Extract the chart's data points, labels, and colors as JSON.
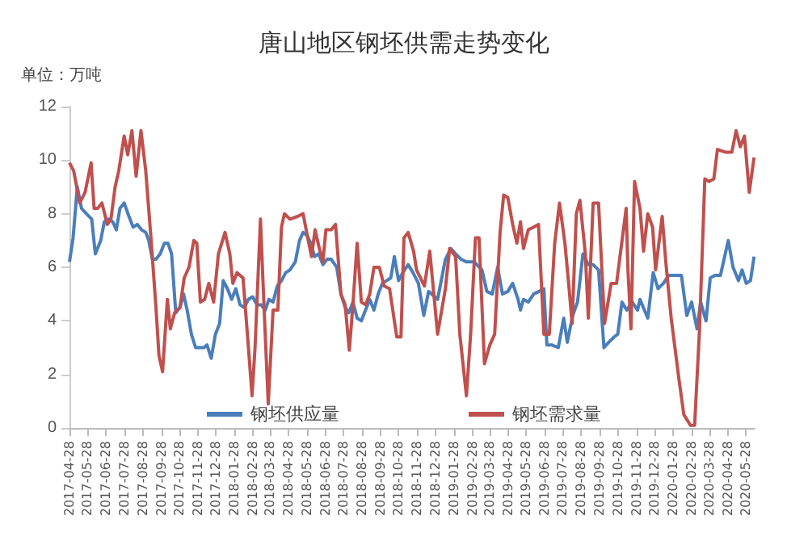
{
  "chart_data": {
    "type": "line",
    "title": "唐山地区钢坯供需走势变化",
    "ylabel": "单位：万吨",
    "xlim": [
      "2017-04-28",
      "2020-06-12"
    ],
    "xticks": [
      "2017-04-28",
      "2017-05-28",
      "2017-06-28",
      "2017-07-28",
      "2017-08-28",
      "2017-09-28",
      "2017-10-28",
      "2017-11-28",
      "2017-12-28",
      "2018-01-28",
      "2018-02-28",
      "2018-03-28",
      "2018-04-28",
      "2018-05-28",
      "2018-06-28",
      "2018-07-28",
      "2018-08-28",
      "2018-09-28",
      "2018-10-28",
      "2018-11-28",
      "2018-12-28",
      "2019-01-28",
      "2019-02-28",
      "2019-03-28",
      "2019-04-28",
      "2019-05-28",
      "2019-06-28",
      "2019-07-28",
      "2019-08-28",
      "2019-09-28",
      "2019-10-28",
      "2019-11-28",
      "2019-12-28",
      "2020-01-28",
      "2020-02-28",
      "2020-03-28",
      "2020-04-28",
      "2020-05-28"
    ],
    "ylim": [
      0,
      12
    ],
    "yticks": [
      0,
      2,
      4,
      6,
      8,
      10,
      12
    ],
    "grid": false,
    "legend": "bottom",
    "marker": "none",
    "line_style": "solid",
    "series": [
      {
        "name": "钢坯供应量",
        "color": "#4a7ebb",
        "x": [
          "2017-04-28",
          "2017-05-04",
          "2017-05-11",
          "2017-05-18",
          "2017-05-26",
          "2017-06-04",
          "2017-06-10",
          "2017-06-19",
          "2017-06-25",
          "2017-07-02",
          "2017-07-09",
          "2017-07-15",
          "2017-07-21",
          "2017-07-28",
          "2017-08-05",
          "2017-08-12",
          "2017-08-19",
          "2017-08-26",
          "2017-09-02",
          "2017-09-07",
          "2017-09-13",
          "2017-09-19",
          "2017-09-26",
          "2017-10-03",
          "2017-10-09",
          "2017-10-15",
          "2017-10-22",
          "2017-10-29",
          "2017-11-04",
          "2017-11-10",
          "2017-11-17",
          "2017-11-24",
          "2017-12-01",
          "2017-12-08",
          "2017-12-13",
          "2017-12-20",
          "2017-12-27",
          "2018-01-03",
          "2018-01-09",
          "2018-01-16",
          "2018-01-23",
          "2018-01-30",
          "2018-02-06",
          "2018-02-13",
          "2018-02-20",
          "2018-02-27",
          "2018-03-06",
          "2018-03-13",
          "2018-03-20",
          "2018-03-26",
          "2018-04-02",
          "2018-04-09",
          "2018-04-16",
          "2018-04-23",
          "2018-04-30",
          "2018-05-09",
          "2018-05-16",
          "2018-05-22",
          "2018-05-28",
          "2018-06-04",
          "2018-06-10",
          "2018-06-17",
          "2018-06-24",
          "2018-07-01",
          "2018-07-08",
          "2018-07-17",
          "2018-07-24",
          "2018-07-31",
          "2018-08-06",
          "2018-08-13",
          "2018-08-20",
          "2018-08-27",
          "2018-09-03",
          "2018-09-10",
          "2018-09-17",
          "2018-09-24",
          "2018-10-01",
          "2018-10-08",
          "2018-10-15",
          "2018-10-21",
          "2018-10-28",
          "2018-11-04",
          "2018-11-13",
          "2018-11-21",
          "2018-11-30",
          "2018-12-09",
          "2018-12-17",
          "2019-01-01",
          "2019-01-14",
          "2019-01-23",
          "2019-01-31",
          "2019-02-09",
          "2019-02-18",
          "2019-03-03",
          "2019-03-16",
          "2019-03-24",
          "2019-04-02",
          "2019-04-11",
          "2019-04-19",
          "2019-04-28",
          "2019-05-06",
          "2019-05-15",
          "2019-05-19",
          "2019-05-24",
          "2019-06-01",
          "2019-06-10",
          "2019-06-19",
          "2019-06-27",
          "2019-07-02",
          "2019-07-10",
          "2019-07-21",
          "2019-07-30",
          "2019-08-05",
          "2019-08-14",
          "2019-08-22",
          "2019-08-31",
          "2019-09-09",
          "2019-09-17",
          "2019-09-26",
          "2019-10-05",
          "2019-10-13",
          "2019-10-22",
          "2019-10-28",
          "2019-11-04",
          "2019-11-12",
          "2019-11-21",
          "2019-11-30",
          "2019-12-04",
          "2019-12-17",
          "2019-12-26",
          "2020-01-03",
          "2020-01-12",
          "2020-01-21",
          "2020-02-02",
          "2020-02-11",
          "2020-02-20",
          "2020-02-28",
          "2020-03-08",
          "2020-03-14",
          "2020-03-23",
          "2020-03-30",
          "2020-04-07",
          "2020-04-16",
          "2020-04-29",
          "2020-05-07",
          "2020-05-16",
          "2020-05-22",
          "2020-05-29",
          "2020-06-05",
          "2020-06-11"
        ],
        "values": [
          6.2,
          7.1,
          9.0,
          8.2,
          8.0,
          7.8,
          6.5,
          7.0,
          7.7,
          7.8,
          7.7,
          7.4,
          8.2,
          8.4,
          7.9,
          7.5,
          7.6,
          7.4,
          7.3,
          7.0,
          6.3,
          6.3,
          6.5,
          6.9,
          6.9,
          6.5,
          4.3,
          4.5,
          5.0,
          4.4,
          3.5,
          3.0,
          3.0,
          3.0,
          3.1,
          2.6,
          3.5,
          3.9,
          5.5,
          5.2,
          4.8,
          5.2,
          4.6,
          4.5,
          4.8,
          4.9,
          4.6,
          4.6,
          4.4,
          4.8,
          4.7,
          5.3,
          5.5,
          5.8,
          5.9,
          6.2,
          7.0,
          7.3,
          7.2,
          6.9,
          6.4,
          6.5,
          6.1,
          6.3,
          6.3,
          6.0,
          5.0,
          4.5,
          4.3,
          4.7,
          4.1,
          4.0,
          4.4,
          4.8,
          4.4,
          5.0,
          5.4,
          5.5,
          5.6,
          6.4,
          5.5,
          5.8,
          6.1,
          5.8,
          5.4,
          4.2,
          5.1,
          4.8,
          6.3,
          6.7,
          6.5,
          6.3,
          6.2,
          6.2,
          5.9,
          5.1,
          5.0,
          6.0,
          5.0,
          5.1,
          5.4,
          4.8,
          4.4,
          4.8,
          4.7,
          5.0,
          5.1,
          5.2,
          3.1,
          3.1,
          3.0,
          4.1,
          3.2,
          4.2,
          4.7,
          6.5,
          6.1,
          6.1,
          5.9,
          3.0,
          3.2,
          3.4,
          3.5,
          4.7,
          4.4,
          4.7,
          4.4,
          4.8,
          4.1,
          5.8,
          5.2,
          5.4,
          5.7,
          5.7,
          5.7,
          4.2,
          4.7,
          3.7,
          4.7,
          4.0,
          5.6,
          5.7,
          5.7,
          7.0,
          6.0,
          5.5,
          5.9,
          5.4,
          5.5,
          6.4
        ]
      },
      {
        "name": "钢坯需求量",
        "color": "#c0504d",
        "x": [
          "2017-04-28",
          "2017-05-05",
          "2017-05-15",
          "2017-05-24",
          "2017-06-03",
          "2017-06-08",
          "2017-06-14",
          "2017-06-21",
          "2017-06-30",
          "2017-07-06",
          "2017-07-13",
          "2017-07-19",
          "2017-07-28",
          "2017-08-03",
          "2017-08-10",
          "2017-08-17",
          "2017-08-25",
          "2017-09-02",
          "2017-09-11",
          "2017-09-19",
          "2017-09-24",
          "2017-09-30",
          "2017-10-08",
          "2017-10-13",
          "2017-10-20",
          "2017-10-29",
          "2017-11-05",
          "2017-11-13",
          "2017-11-21",
          "2017-11-26",
          "2017-12-02",
          "2017-12-09",
          "2017-12-16",
          "2017-12-24",
          "2018-01-01",
          "2018-01-12",
          "2018-01-20",
          "2018-01-25",
          "2018-02-01",
          "2018-02-11",
          "2018-02-20",
          "2018-02-26",
          "2018-03-03",
          "2018-03-12",
          "2018-03-18",
          "2018-03-25",
          "2018-04-02",
          "2018-04-10",
          "2018-04-16",
          "2018-04-21",
          "2018-04-30",
          "2018-05-13",
          "2018-05-22",
          "2018-05-28",
          "2018-06-05",
          "2018-06-11",
          "2018-06-17",
          "2018-06-24",
          "2018-06-29",
          "2018-07-08",
          "2018-07-15",
          "2018-07-24",
          "2018-07-31",
          "2018-08-07",
          "2018-08-13",
          "2018-08-20",
          "2018-08-27",
          "2018-09-03",
          "2018-09-10",
          "2018-09-17",
          "2018-09-26",
          "2018-10-04",
          "2018-10-13",
          "2018-10-25",
          "2018-11-01",
          "2018-11-06",
          "2018-11-13",
          "2018-11-22",
          "2018-11-27",
          "2018-12-10",
          "2018-12-19",
          "2019-01-01",
          "2019-01-14",
          "2019-01-21",
          "2019-01-31",
          "2019-02-07",
          "2019-02-18",
          "2019-02-25",
          "2019-03-05",
          "2019-03-11",
          "2019-03-20",
          "2019-03-29",
          "2019-04-06",
          "2019-04-15",
          "2019-04-21",
          "2019-04-28",
          "2019-05-06",
          "2019-05-13",
          "2019-05-19",
          "2019-05-24",
          "2019-06-01",
          "2019-06-10",
          "2019-06-18",
          "2019-06-27",
          "2019-07-06",
          "2019-07-15",
          "2019-07-23",
          "2019-08-01",
          "2019-08-08",
          "2019-08-13",
          "2019-08-20",
          "2019-08-26",
          "2019-09-04",
          "2019-09-09",
          "2019-09-17",
          "2019-09-26",
          "2019-10-06",
          "2019-10-17",
          "2019-10-26",
          "2019-11-11",
          "2019-11-14",
          "2019-11-19",
          "2019-11-25",
          "2019-12-04",
          "2019-12-10",
          "2019-12-17",
          "2019-12-25",
          "2019-12-30",
          "2020-01-10",
          "2020-01-16",
          "2020-01-25",
          "2020-02-07",
          "2020-02-15",
          "2020-02-26",
          "2020-03-04",
          "2020-03-12",
          "2020-03-21",
          "2020-03-28",
          "2020-04-05",
          "2020-04-11",
          "2020-04-24",
          "2020-05-05",
          "2020-05-12",
          "2020-05-19",
          "2020-05-26",
          "2020-06-03",
          "2020-06-11"
        ],
        "values": [
          9.9,
          9.6,
          8.4,
          8.8,
          9.9,
          8.2,
          8.2,
          8.4,
          7.6,
          7.8,
          9.0,
          9.6,
          10.9,
          10.2,
          11.1,
          9.4,
          11.1,
          9.6,
          7.0,
          4.5,
          2.7,
          2.1,
          4.8,
          3.7,
          4.3,
          4.5,
          5.6,
          6.0,
          7.0,
          6.9,
          4.7,
          4.8,
          5.4,
          4.7,
          6.5,
          7.3,
          6.5,
          5.4,
          5.8,
          5.6,
          3.0,
          1.2,
          3.0,
          7.8,
          4.5,
          0.9,
          4.4,
          4.4,
          7.5,
          8.0,
          7.8,
          7.9,
          8.0,
          7.3,
          6.4,
          7.4,
          6.8,
          6.2,
          7.4,
          7.4,
          7.6,
          5.0,
          4.6,
          2.9,
          4.6,
          6.9,
          4.7,
          4.6,
          5.0,
          6.0,
          6.0,
          5.3,
          5.2,
          3.4,
          3.4,
          7.1,
          7.3,
          6.6,
          5.9,
          5.3,
          6.6,
          3.5,
          5.2,
          6.7,
          6.4,
          3.5,
          1.2,
          3.5,
          7.1,
          7.1,
          2.4,
          3.1,
          3.5,
          7.3,
          8.7,
          8.6,
          7.6,
          6.9,
          7.7,
          6.7,
          7.4,
          7.5,
          7.6,
          3.5,
          3.5,
          6.9,
          8.4,
          6.9,
          5.2,
          3.9,
          8.0,
          8.5,
          6.5,
          4.1,
          8.4,
          8.4,
          3.9,
          5.4,
          5.4,
          8.2,
          5.9,
          3.7,
          9.2,
          8.2,
          6.6,
          8.0,
          7.5,
          5.9,
          7.9,
          6.2,
          4.1,
          1.8,
          0.5,
          0.1,
          0.1,
          3.6,
          9.3,
          9.2,
          9.3,
          10.4,
          10.3,
          10.3,
          11.1,
          10.5,
          10.9,
          8.8,
          10.1
        ]
      }
    ]
  }
}
